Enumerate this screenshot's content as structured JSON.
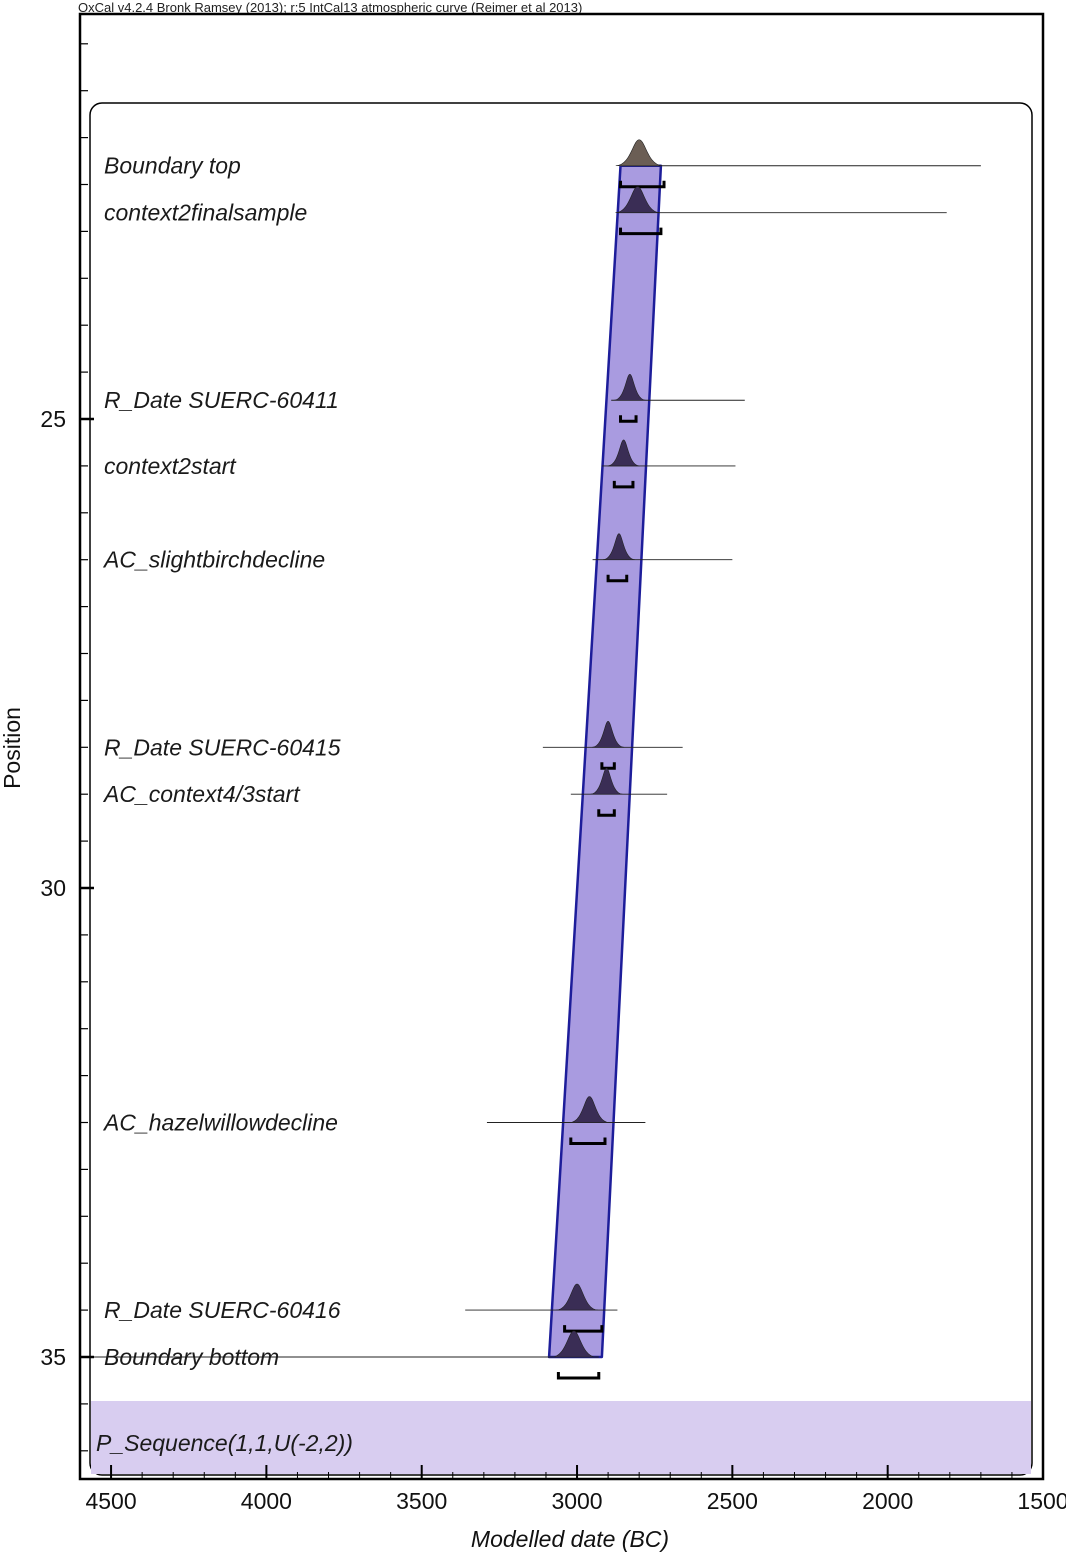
{
  "header": "OxCal v4.2.4 Bronk Ramsey (2013); r:5 IntCal13 atmospheric curve (Reimer et al 2013)",
  "chart_data": {
    "type": "depth-age model",
    "xlabel": "Modelled date (BC)",
    "ylabel": "Position",
    "x_range_bc": [
      4600,
      1500
    ],
    "x_reversed": true,
    "x_ticks": [
      4500,
      4000,
      3500,
      3000,
      2500,
      2000,
      1500
    ],
    "y_range": [
      21,
      36.3
    ],
    "y_ticks": [
      25,
      30,
      35
    ],
    "y_minor_step": 0.5,
    "model_label": "P_Sequence(1,1,U(-2,2))",
    "envelope": [
      {
        "position": 22.3,
        "from_bc": 2860,
        "to_bc": 2730
      },
      {
        "position": 35.0,
        "from_bc": 3090,
        "to_bc": 2920
      }
    ],
    "items": [
      {
        "label": "Boundary top",
        "position": 22.3,
        "peak_bc": 2800,
        "range_bc": [
          2860,
          2720
        ],
        "tail_bc": [
          2860,
          1700
        ]
      },
      {
        "label": "context2finalsample",
        "position": 22.8,
        "peak_bc": 2805,
        "range_bc": [
          2860,
          2730
        ],
        "tail_bc": [
          2870,
          1810
        ]
      },
      {
        "label": "R_Date SUERC-60411",
        "position": 24.8,
        "peak_bc": 2830,
        "range_bc": [
          2860,
          2810
        ],
        "tail_bc": [
          2890,
          2460
        ]
      },
      {
        "label": "context2start",
        "position": 25.5,
        "peak_bc": 2850,
        "range_bc": [
          2880,
          2820
        ],
        "tail_bc": [
          2920,
          2490
        ]
      },
      {
        "label": "AC_slightbirchdecline",
        "position": 26.5,
        "peak_bc": 2865,
        "range_bc": [
          2900,
          2840
        ],
        "tail_bc": [
          2950,
          2500
        ]
      },
      {
        "label": "R_Date SUERC-60415",
        "position": 28.5,
        "peak_bc": 2900,
        "range_bc": [
          2920,
          2880
        ],
        "tail_bc": [
          3110,
          2660
        ]
      },
      {
        "label": "AC_context4/3start",
        "position": 29.0,
        "peak_bc": 2905,
        "range_bc": [
          2930,
          2880
        ],
        "tail_bc": [
          3020,
          2710
        ]
      },
      {
        "label": "AC_hazelwillowdecline",
        "position": 32.5,
        "peak_bc": 2960,
        "range_bc": [
          3020,
          2910
        ],
        "tail_bc": [
          3290,
          2780
        ]
      },
      {
        "label": "R_Date SUERC-60416",
        "position": 34.5,
        "peak_bc": 3000,
        "range_bc": [
          3040,
          2920
        ],
        "tail_bc": [
          3360,
          2870
        ]
      },
      {
        "label": "Boundary bottom",
        "position": 35.0,
        "peak_bc": 3010,
        "range_bc": [
          3060,
          2930
        ],
        "tail_bc": [
          4580,
          2930
        ]
      }
    ]
  }
}
